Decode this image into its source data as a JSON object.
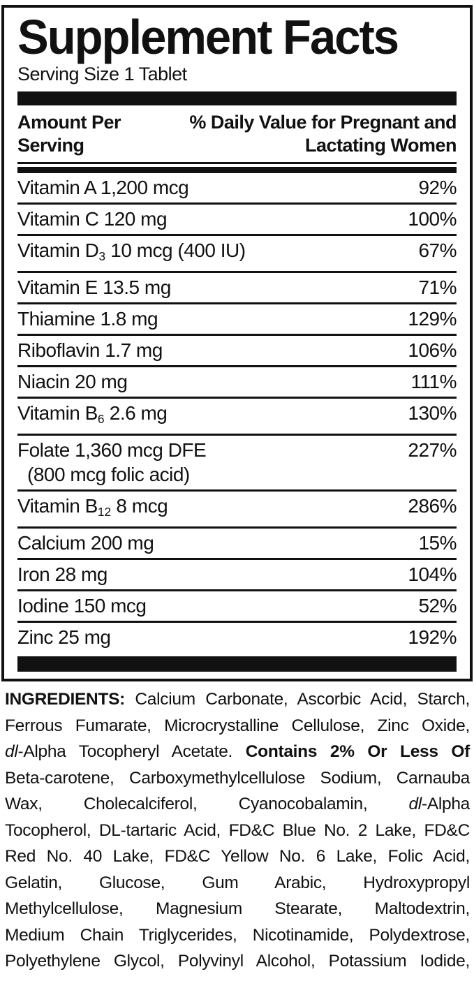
{
  "label": {
    "title": "Supplement Facts",
    "serving_size": "Serving Size 1 Tablet",
    "header": {
      "left": "Amount Per Serving",
      "right": "% Daily Value for Pregnant and Lactating Women"
    },
    "table": {
      "rows": [
        {
          "name": [
            {
              "t": "Vitamin A 1,200 mcg"
            }
          ],
          "value": "92%"
        },
        {
          "name": [
            {
              "t": "Vitamin C 120 mg"
            }
          ],
          "value": "100%"
        },
        {
          "name": [
            {
              "t": "Vitamin D"
            },
            {
              "t": "3",
              "sub": true
            },
            {
              "t": " 10 mcg (400 IU)"
            }
          ],
          "value": "67%"
        },
        {
          "name": [
            {
              "t": "Vitamin E 13.5 mg"
            }
          ],
          "value": "71%"
        },
        {
          "name": [
            {
              "t": "Thiamine 1.8 mg"
            }
          ],
          "value": "129%"
        },
        {
          "name": [
            {
              "t": "Riboflavin 1.7 mg"
            }
          ],
          "value": "106%"
        },
        {
          "name": [
            {
              "t": "Niacin 20 mg"
            }
          ],
          "value": "111%"
        },
        {
          "name": [
            {
              "t": "Vitamin B"
            },
            {
              "t": "6",
              "sub": true
            },
            {
              "t": " 2.6 mg"
            }
          ],
          "value": "130%"
        },
        {
          "name": [
            {
              "t": "Folate 1,360 mcg DFE"
            }
          ],
          "note": "(800 mcg folic acid)",
          "value": "227%"
        },
        {
          "name": [
            {
              "t": "Vitamin B"
            },
            {
              "t": "12",
              "sub": true
            },
            {
              "t": " 8 mcg"
            }
          ],
          "value": "286%"
        },
        {
          "name": [
            {
              "t": "Calcium 200 mg"
            }
          ],
          "value": "15%"
        },
        {
          "name": [
            {
              "t": "Iron 28 mg"
            }
          ],
          "value": "104%"
        },
        {
          "name": [
            {
              "t": "Iodine 150 mcg"
            }
          ],
          "value": "52%"
        },
        {
          "name": [
            {
              "t": "Zinc 25 mg"
            }
          ],
          "value": "192%"
        }
      ]
    },
    "colors": {
      "ink": "#111111",
      "background": "#ffffff"
    }
  },
  "ingredients": {
    "lines": [
      [
        {
          "t": "INGREDIENTS:",
          "b": true
        },
        {
          "t": " Calcium Carbonate, Ascorbic Acid, Starch,"
        }
      ],
      [
        {
          "t": "Ferrous Fumarate, Microcrystalline Cellulose, Zinc Oxide,"
        }
      ],
      [
        {
          "t": "dl",
          "i": true
        },
        {
          "t": "-Alpha Tocopheryl Acetate. "
        },
        {
          "t": "Contains 2% Or Less Of",
          "b": true
        }
      ],
      [
        {
          "t": "Beta-carotene, Carboxymethylcellulose Sodium, Carnauba"
        }
      ],
      [
        {
          "t": "Wax, Cholecalciferol, Cyanocobalamin, "
        },
        {
          "t": "dl",
          "i": true
        },
        {
          "t": "-Alpha"
        }
      ],
      [
        {
          "t": "Tocopherol, DL-tartaric Acid, FD&C Blue No. 2 Lake, FD&C"
        }
      ],
      [
        {
          "t": "Red No. 40 Lake, FD&C Yellow No. 6 Lake, Folic Acid,"
        }
      ],
      [
        {
          "t": "Gelatin, Glucose, Gum Arabic, Hydroxypropyl"
        }
      ],
      [
        {
          "t": "Methylcellulose, Magnesium Stearate, Maltodextrin,"
        }
      ],
      [
        {
          "t": "Medium Chain Triglycerides, Nicotinamide, Polydextrose,"
        }
      ],
      [
        {
          "t": "Polyethylene Glycol, Polyvinyl Alcohol, Potassium Iodide,"
        }
      ]
    ]
  }
}
